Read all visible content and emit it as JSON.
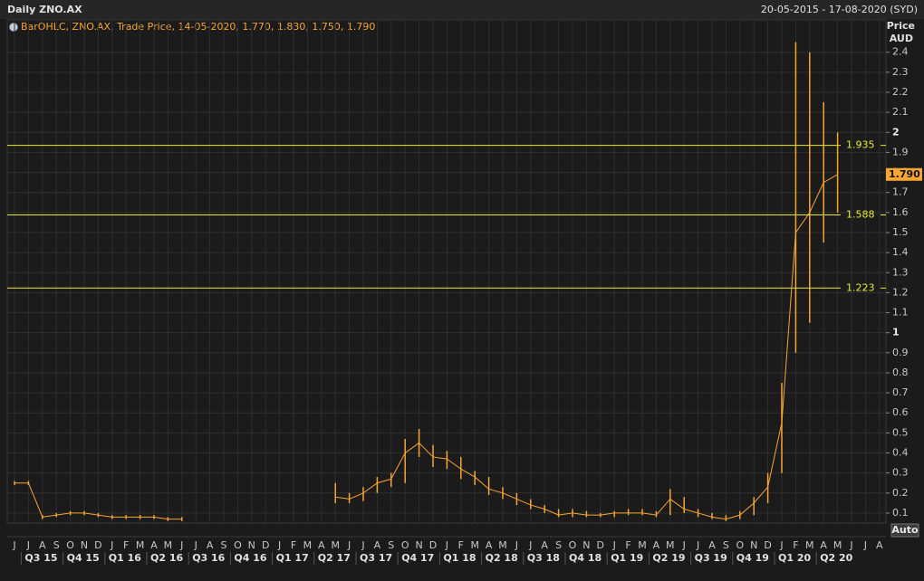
{
  "chart_data": {
    "type": "bar_ohlc",
    "title": "Daily ZNO.AX",
    "subtitle": "20-05-2015 - 17-08-2020 (SYD)",
    "legend": "BarOHLC, ZNO.AX, Trade Price, 14-05-2020, 1.770, 1.830, 1.750, 1.790",
    "ylabel": "Price",
    "yunit": "AUD",
    "button": "Auto",
    "color": "#f7a535",
    "level_color": "#e8e83a",
    "categories": [
      "J",
      "J",
      "A",
      "S",
      "O",
      "N",
      "D",
      "J",
      "F",
      "M",
      "A",
      "M",
      "J",
      "J",
      "A",
      "S",
      "O",
      "N",
      "D",
      "J",
      "F",
      "M",
      "A",
      "M",
      "J",
      "J",
      "A",
      "S",
      "O",
      "N",
      "D",
      "J",
      "F",
      "M",
      "A",
      "M",
      "J",
      "J",
      "A",
      "S",
      "O",
      "N",
      "D",
      "J",
      "F",
      "M",
      "A",
      "M",
      "J",
      "J",
      "A",
      "S",
      "O",
      "N",
      "D",
      "J",
      "F",
      "M",
      "A",
      "M",
      "J",
      "J",
      "A"
    ],
    "quarters": [
      "Q3 15",
      "Q4 15",
      "Q1 16",
      "Q2 16",
      "Q3 16",
      "Q4 16",
      "Q1 17",
      "Q2 17",
      "Q3 17",
      "Q4 17",
      "Q1 18",
      "Q2 18",
      "Q3 18",
      "Q4 18",
      "Q1 19",
      "Q2 19",
      "Q3 19",
      "Q4 19",
      "Q1 20",
      "Q2 20"
    ],
    "values": [
      0.25,
      0.25,
      0.08,
      0.09,
      0.1,
      0.1,
      0.09,
      0.08,
      0.08,
      0.08,
      0.08,
      0.07,
      0.07,
      null,
      null,
      null,
      null,
      null,
      null,
      null,
      null,
      null,
      null,
      0.18,
      0.17,
      0.2,
      0.25,
      0.27,
      0.4,
      0.45,
      0.38,
      0.37,
      0.32,
      0.28,
      0.22,
      0.2,
      0.17,
      0.14,
      0.12,
      0.09,
      0.1,
      0.09,
      0.09,
      0.1,
      0.1,
      0.1,
      0.09,
      0.17,
      0.12,
      0.1,
      0.08,
      0.07,
      0.09,
      0.15,
      0.23,
      0.55,
      1.5,
      1.6,
      1.75,
      1.79,
      null,
      null,
      null
    ],
    "highs": [
      0.26,
      0.26,
      0.09,
      0.1,
      0.11,
      0.11,
      0.1,
      0.09,
      0.09,
      0.09,
      0.09,
      0.08,
      0.08,
      null,
      null,
      null,
      null,
      null,
      null,
      null,
      null,
      null,
      null,
      0.25,
      0.2,
      0.23,
      0.28,
      0.3,
      0.47,
      0.52,
      0.44,
      0.41,
      0.38,
      0.31,
      0.28,
      0.23,
      0.2,
      0.17,
      0.14,
      0.12,
      0.12,
      0.11,
      0.1,
      0.11,
      0.12,
      0.12,
      0.11,
      0.22,
      0.18,
      0.12,
      0.1,
      0.09,
      0.11,
      0.18,
      0.3,
      0.75,
      2.45,
      2.4,
      2.15,
      2.0,
      null,
      null,
      null
    ],
    "lows": [
      0.24,
      0.24,
      0.07,
      0.08,
      0.09,
      0.09,
      0.08,
      0.07,
      0.07,
      0.07,
      0.07,
      0.06,
      0.06,
      null,
      null,
      null,
      null,
      null,
      null,
      null,
      null,
      null,
      null,
      0.15,
      0.15,
      0.16,
      0.2,
      0.23,
      0.25,
      0.38,
      0.33,
      0.32,
      0.27,
      0.24,
      0.19,
      0.17,
      0.14,
      0.12,
      0.1,
      0.08,
      0.08,
      0.08,
      0.08,
      0.08,
      0.09,
      0.09,
      0.08,
      0.09,
      0.1,
      0.08,
      0.07,
      0.06,
      0.07,
      0.09,
      0.15,
      0.3,
      0.9,
      1.05,
      1.45,
      1.6,
      null,
      null,
      null
    ],
    "levels": [
      1.935,
      1.588,
      1.223
    ],
    "last_price": {
      "value": 1.79,
      "label": "1.790"
    },
    "ylim": [
      0.05,
      2.48
    ],
    "yticks": [
      0.1,
      0.2,
      0.3,
      0.4,
      0.5,
      0.6,
      0.7,
      0.8,
      0.9,
      1,
      1.1,
      1.2,
      1.3,
      1.4,
      1.5,
      1.6,
      1.7,
      1.8,
      1.9,
      2,
      2.1,
      2.2,
      2.3,
      2.4
    ],
    "grid": true
  }
}
